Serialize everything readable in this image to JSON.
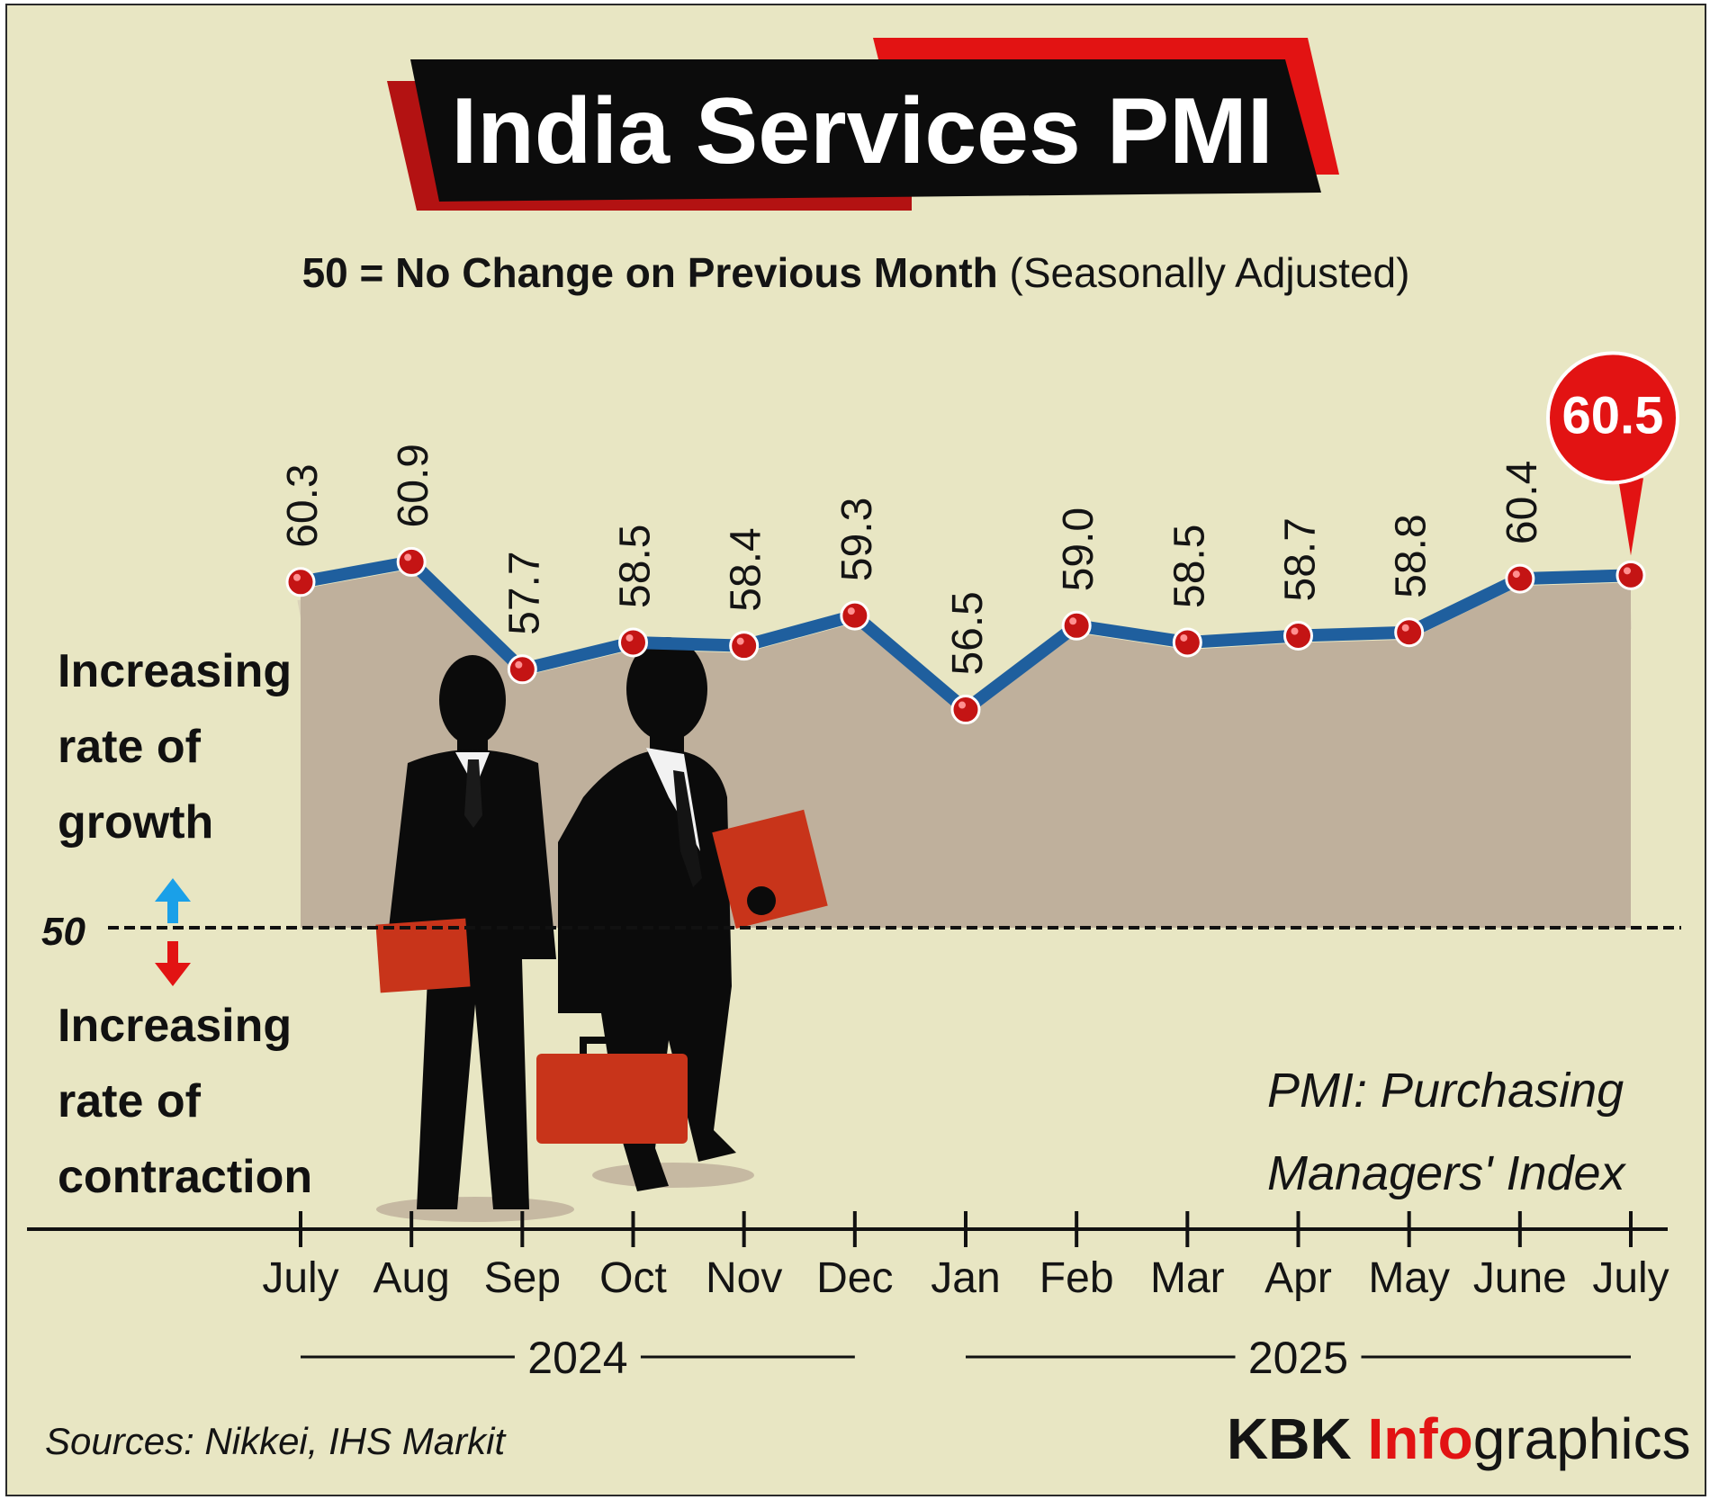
{
  "header": {
    "title": "India Services PMI",
    "subtitle_bold": "50 = No Change on Previous Month",
    "subtitle_plain": "(Seasonally Adjusted)"
  },
  "labels": {
    "growth_lines": [
      "Increasing",
      "rate of",
      "growth"
    ],
    "contraction_lines": [
      "Increasing",
      "rate of",
      "contraction"
    ],
    "fifty": "50",
    "pmi_note_lines": [
      "PMI: Purchasing",
      "Managers' Index"
    ]
  },
  "footer": {
    "sources": "Sources: Nikkei, IHS Markit",
    "brand_kbk": "KBK",
    "brand_info": "Info",
    "brand_graphics": "graphics"
  },
  "chart_data": {
    "type": "line",
    "categories": [
      "July",
      "Aug",
      "Sep",
      "Oct",
      "Nov",
      "Dec",
      "Jan",
      "Feb",
      "Mar",
      "Apr",
      "May",
      "June",
      "July"
    ],
    "values": [
      60.3,
      60.9,
      57.7,
      58.5,
      58.4,
      59.3,
      56.5,
      59.0,
      58.5,
      58.7,
      58.8,
      60.4,
      60.5
    ],
    "value_labels": [
      "60.3",
      "60.9",
      "57.7",
      "58.5",
      "58.4",
      "59.3",
      "56.5",
      "59.0",
      "58.5",
      "58.7",
      "58.8",
      "60.4",
      "60.5"
    ],
    "years": [
      {
        "label": "2024",
        "from": 0,
        "to": 5
      },
      {
        "label": "2025",
        "from": 6,
        "to": 12
      }
    ],
    "baseline": 50,
    "highlight_index": 12,
    "colors": {
      "line": "#1f5f9e",
      "marker": "#c41414",
      "area": "#bfb09c",
      "callout": "#e21313",
      "up_arrow": "#1aa0e8",
      "down_arrow": "#e21313"
    }
  }
}
